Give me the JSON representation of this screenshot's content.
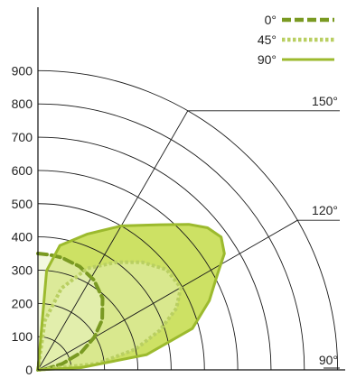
{
  "chart_data": {
    "type": "polar-line",
    "title": "",
    "r_axis": {
      "range": [
        0,
        900
      ],
      "ticks": [
        "0",
        "100",
        "200",
        "300",
        "400",
        "500",
        "600",
        "700",
        "800",
        "900"
      ]
    },
    "angle_labels": [
      "150°",
      "120°",
      "90°"
    ],
    "legend": {
      "placement": "top-right",
      "entries": [
        "0°",
        "45°",
        "90°"
      ]
    },
    "series": [
      {
        "name": "0°",
        "color": "#7a9a22",
        "style": "dashed",
        "points": [
          {
            "angle": 0,
            "r": 350
          },
          {
            "angle": 6,
            "r": 348
          },
          {
            "angle": 12,
            "r": 345
          },
          {
            "angle": 22,
            "r": 335
          },
          {
            "angle": 32,
            "r": 318
          },
          {
            "angle": 42,
            "r": 290
          },
          {
            "angle": 52,
            "r": 245
          },
          {
            "angle": 60,
            "r": 195
          },
          {
            "angle": 68,
            "r": 140
          },
          {
            "angle": 76,
            "r": 75
          },
          {
            "angle": 84,
            "r": 25
          },
          {
            "angle": 90,
            "r": 0
          }
        ]
      },
      {
        "name": "45°",
        "color": "#b9cf62",
        "style": "dotted",
        "points": [
          {
            "angle": 0,
            "r": 0
          },
          {
            "angle": 8,
            "r": 150
          },
          {
            "angle": 16,
            "r": 255
          },
          {
            "angle": 26,
            "r": 340
          },
          {
            "angle": 36,
            "r": 400
          },
          {
            "angle": 44,
            "r": 450
          },
          {
            "angle": 52,
            "r": 490
          },
          {
            "angle": 60,
            "r": 495
          },
          {
            "angle": 66,
            "r": 455
          },
          {
            "angle": 72,
            "r": 385
          },
          {
            "angle": 78,
            "r": 300
          },
          {
            "angle": 84,
            "r": 180
          },
          {
            "angle": 90,
            "r": 0
          }
        ]
      },
      {
        "name": "90°",
        "color": "#9cba2e",
        "style": "solid",
        "points": [
          {
            "angle": 0,
            "r": 0
          },
          {
            "angle": 5,
            "r": 300
          },
          {
            "angle": 10,
            "r": 380
          },
          {
            "angle": 20,
            "r": 435
          },
          {
            "angle": 30,
            "r": 500
          },
          {
            "angle": 40,
            "r": 570
          },
          {
            "angle": 46,
            "r": 630
          },
          {
            "angle": 50,
            "r": 665
          },
          {
            "angle": 54,
            "r": 680
          },
          {
            "angle": 58,
            "r": 660
          },
          {
            "angle": 62,
            "r": 610
          },
          {
            "angle": 68,
            "r": 555
          },
          {
            "angle": 75,
            "r": 480
          },
          {
            "angle": 82,
            "r": 330
          },
          {
            "angle": 87,
            "r": 130
          },
          {
            "angle": 90,
            "r": 0
          }
        ]
      }
    ]
  }
}
